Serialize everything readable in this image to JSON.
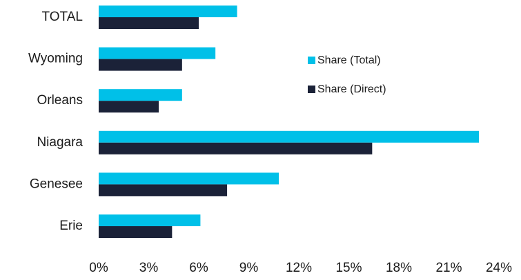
{
  "chart_data": {
    "type": "bar",
    "orientation": "horizontal",
    "categories": [
      "TOTAL",
      "Wyoming",
      "Orleans",
      "Niagara",
      "Genesee",
      "Erie"
    ],
    "series": [
      {
        "name": "Share (Total)",
        "color": "#00c0e8",
        "values": [
          8.3,
          7.0,
          5.0,
          22.8,
          10.8,
          6.1
        ]
      },
      {
        "name": "Share (Direct)",
        "color": "#1b2238",
        "values": [
          6.0,
          5.0,
          3.6,
          16.4,
          7.7,
          4.4
        ]
      }
    ],
    "xlim": [
      0,
      24
    ],
    "xticks": [
      {
        "value": 0,
        "label": "0%"
      },
      {
        "value": 3,
        "label": "3%"
      },
      {
        "value": 6,
        "label": "6%"
      },
      {
        "value": 9,
        "label": "9%"
      },
      {
        "value": 12,
        "label": "12%"
      },
      {
        "value": 15,
        "label": "15%"
      },
      {
        "value": 18,
        "label": "18%"
      },
      {
        "value": 21,
        "label": "21%"
      },
      {
        "value": 24,
        "label": "24%"
      }
    ],
    "grid": false,
    "legend": "center"
  }
}
